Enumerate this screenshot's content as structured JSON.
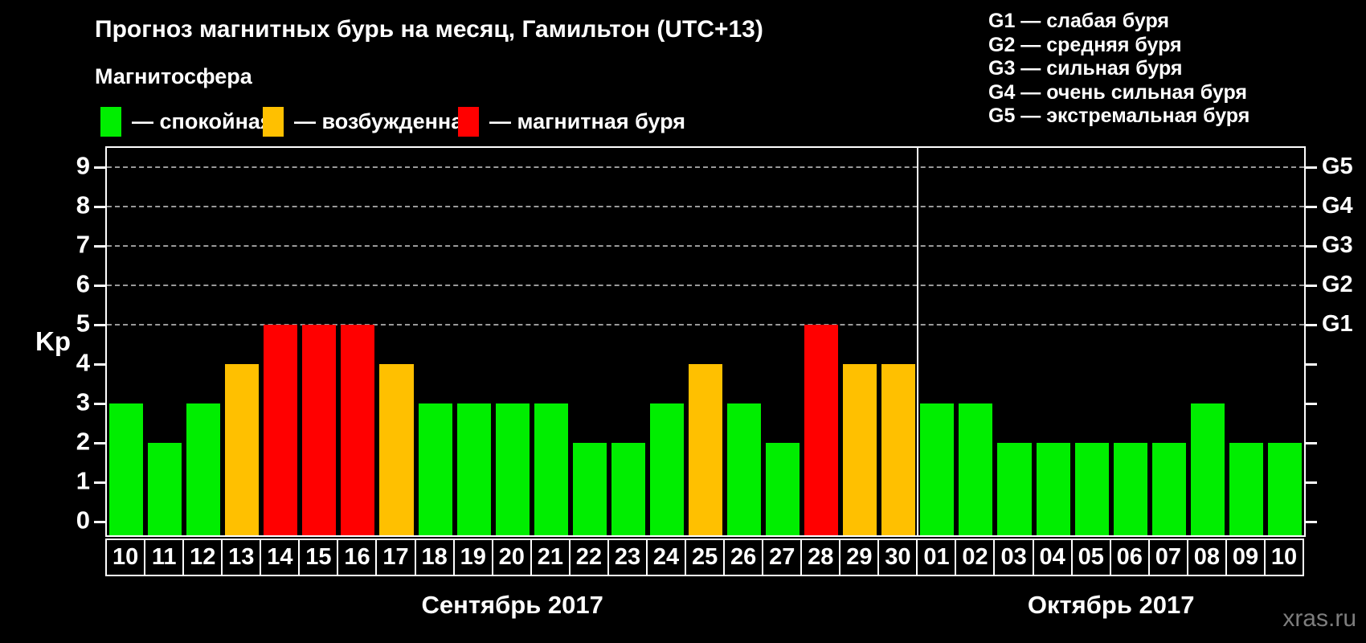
{
  "title": "Прогноз магнитных бурь на месяц, Гамильтон (UTC+13)",
  "subtitle": "Магнитосфера",
  "legend": {
    "items": [
      {
        "name": "quiet",
        "label": "— спокойная",
        "color": "#00ee00"
      },
      {
        "name": "excited",
        "label": "— возбужденная",
        "color": "#ffc000"
      },
      {
        "name": "storm",
        "label": "— магнитная буря",
        "color": "#ff0000"
      }
    ]
  },
  "g_legend": [
    "G1 — слабая буря",
    "G2 — средняя буря",
    "G3 — сильная буря",
    "G4 — очень сильная буря",
    "G5 — экстремальная буря"
  ],
  "watermark": "xras.ru",
  "chart_data": {
    "type": "bar",
    "title": "Прогноз магнитных бурь на месяц, Гамильтон (UTC+13)",
    "ylabel": "Kp",
    "ylim": [
      0,
      9
    ],
    "y_ticks": [
      0,
      1,
      2,
      3,
      4,
      5,
      6,
      7,
      8,
      9
    ],
    "gridlines_at": [
      5,
      6,
      7,
      8,
      9
    ],
    "grid": "dashed",
    "legend_position": "top",
    "right_axis_labels": [
      {
        "label": "G1",
        "value": 5
      },
      {
        "label": "G2",
        "value": 6
      },
      {
        "label": "G3",
        "value": 7
      },
      {
        "label": "G4",
        "value": 8
      },
      {
        "label": "G5",
        "value": 9
      }
    ],
    "colors": {
      "quiet": "#00ee00",
      "excited": "#ffc000",
      "storm": "#ff0000"
    },
    "months": [
      {
        "label": "Сентябрь 2017",
        "days": [
          {
            "day": "10",
            "kp": 3,
            "state": "quiet"
          },
          {
            "day": "11",
            "kp": 2,
            "state": "quiet"
          },
          {
            "day": "12",
            "kp": 3,
            "state": "quiet"
          },
          {
            "day": "13",
            "kp": 4,
            "state": "excited"
          },
          {
            "day": "14",
            "kp": 5,
            "state": "storm"
          },
          {
            "day": "15",
            "kp": 5,
            "state": "storm"
          },
          {
            "day": "16",
            "kp": 5,
            "state": "storm"
          },
          {
            "day": "17",
            "kp": 4,
            "state": "excited"
          },
          {
            "day": "18",
            "kp": 3,
            "state": "quiet"
          },
          {
            "day": "19",
            "kp": 3,
            "state": "quiet"
          },
          {
            "day": "20",
            "kp": 3,
            "state": "quiet"
          },
          {
            "day": "21",
            "kp": 3,
            "state": "quiet"
          },
          {
            "day": "22",
            "kp": 2,
            "state": "quiet"
          },
          {
            "day": "23",
            "kp": 2,
            "state": "quiet"
          },
          {
            "day": "24",
            "kp": 3,
            "state": "quiet"
          },
          {
            "day": "25",
            "kp": 4,
            "state": "excited"
          },
          {
            "day": "26",
            "kp": 3,
            "state": "quiet"
          },
          {
            "day": "27",
            "kp": 2,
            "state": "quiet"
          },
          {
            "day": "28",
            "kp": 5,
            "state": "storm"
          },
          {
            "day": "29",
            "kp": 4,
            "state": "excited"
          },
          {
            "day": "30",
            "kp": 4,
            "state": "excited"
          }
        ]
      },
      {
        "label": "Октябрь 2017",
        "days": [
          {
            "day": "01",
            "kp": 3,
            "state": "quiet"
          },
          {
            "day": "02",
            "kp": 3,
            "state": "quiet"
          },
          {
            "day": "03",
            "kp": 2,
            "state": "quiet"
          },
          {
            "day": "04",
            "kp": 2,
            "state": "quiet"
          },
          {
            "day": "05",
            "kp": 2,
            "state": "quiet"
          },
          {
            "day": "06",
            "kp": 2,
            "state": "quiet"
          },
          {
            "day": "07",
            "kp": 2,
            "state": "quiet"
          },
          {
            "day": "08",
            "kp": 3,
            "state": "quiet"
          },
          {
            "day": "09",
            "kp": 2,
            "state": "quiet"
          },
          {
            "day": "10",
            "kp": 2,
            "state": "quiet"
          }
        ]
      }
    ]
  }
}
